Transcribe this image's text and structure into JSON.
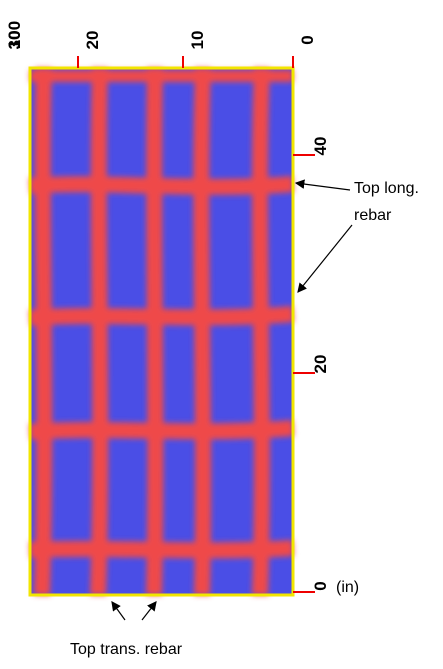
{
  "top_axis": {
    "ticks": [
      "30",
      "100",
      "20",
      "10",
      "0"
    ]
  },
  "right_axis": {
    "ticks": [
      "40",
      "20",
      "0"
    ],
    "unit": "(in)"
  },
  "annotations": {
    "long_rebar": [
      "Top long.",
      "rebar"
    ],
    "trans_rebar": "Top trans. rebar"
  }
}
